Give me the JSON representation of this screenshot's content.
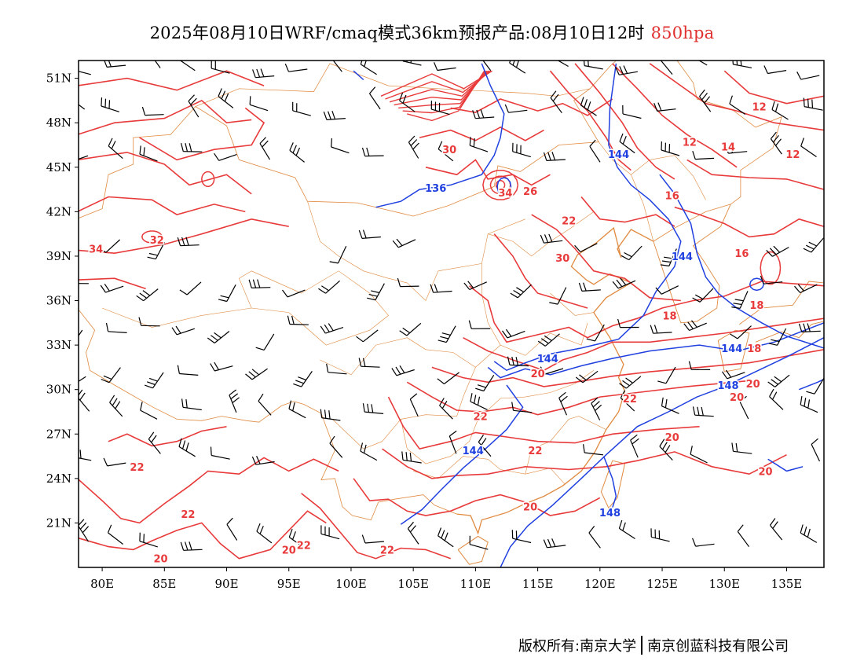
{
  "title": {
    "main": "2025年08月10日WRF/cmaq模式36km预报产品:08月10日12时",
    "level": "850hpa"
  },
  "axes": {
    "x_ticks": [
      "80E",
      "85E",
      "90E",
      "95E",
      "100E",
      "105E",
      "110E",
      "115E",
      "120E",
      "125E",
      "130E",
      "135E"
    ],
    "y_ticks": [
      "51N",
      "48N",
      "45N",
      "42N",
      "39N",
      "36N",
      "33N",
      "30N",
      "27N",
      "24N",
      "21N"
    ]
  },
  "colors": {
    "temperature": "#e83a3a",
    "height": "#2040e0",
    "border": "#e08a40",
    "wind": "#000000"
  },
  "temp_labels": [
    {
      "text": "12",
      "lon": 132.8,
      "lat": 49.1
    },
    {
      "text": "12",
      "lon": 127.2,
      "lat": 46.7
    },
    {
      "text": "14",
      "lon": 130.3,
      "lat": 46.4
    },
    {
      "text": "12",
      "lon": 135.5,
      "lat": 45.9
    },
    {
      "text": "30",
      "lon": 107.9,
      "lat": 46.2
    },
    {
      "text": "34",
      "lon": 112.4,
      "lat": 43.3
    },
    {
      "text": "26",
      "lon": 114.4,
      "lat": 43.4
    },
    {
      "text": "16",
      "lon": 125.8,
      "lat": 43.1
    },
    {
      "text": "22",
      "lon": 117.5,
      "lat": 41.4
    },
    {
      "text": "32",
      "lon": 84.4,
      "lat": 40.1
    },
    {
      "text": "34",
      "lon": 79.5,
      "lat": 39.5
    },
    {
      "text": "30",
      "lon": 117.0,
      "lat": 38.9
    },
    {
      "text": "16",
      "lon": 131.4,
      "lat": 39.2
    },
    {
      "text": "18",
      "lon": 132.6,
      "lat": 35.7
    },
    {
      "text": "18",
      "lon": 125.6,
      "lat": 35.0
    },
    {
      "text": "18",
      "lon": 132.4,
      "lat": 32.8
    },
    {
      "text": "20",
      "lon": 115.0,
      "lat": 31.1
    },
    {
      "text": "20",
      "lon": 132.3,
      "lat": 30.4
    },
    {
      "text": "20",
      "lon": 131.0,
      "lat": 29.5
    },
    {
      "text": "22",
      "lon": 122.4,
      "lat": 29.4
    },
    {
      "text": "22",
      "lon": 110.4,
      "lat": 28.2
    },
    {
      "text": "20",
      "lon": 125.8,
      "lat": 26.8
    },
    {
      "text": "22",
      "lon": 114.8,
      "lat": 25.9
    },
    {
      "text": "22",
      "lon": 82.8,
      "lat": 24.8
    },
    {
      "text": "20",
      "lon": 133.3,
      "lat": 24.5
    },
    {
      "text": "20",
      "lon": 114.4,
      "lat": 22.1
    },
    {
      "text": "22",
      "lon": 86.9,
      "lat": 21.6
    },
    {
      "text": "20",
      "lon": 95.0,
      "lat": 19.2
    },
    {
      "text": "22",
      "lon": 96.2,
      "lat": 19.5
    },
    {
      "text": "22",
      "lon": 102.9,
      "lat": 19.2
    },
    {
      "text": "20",
      "lon": 84.7,
      "lat": 18.6
    }
  ],
  "height_labels": [
    {
      "text": "144",
      "lon": 121.5,
      "lat": 45.9
    },
    {
      "text": "136",
      "lon": 106.8,
      "lat": 43.6
    },
    {
      "text": "144",
      "lon": 126.6,
      "lat": 39.0
    },
    {
      "text": "144",
      "lon": 115.8,
      "lat": 32.1
    },
    {
      "text": "144",
      "lon": 130.6,
      "lat": 32.8
    },
    {
      "text": "148",
      "lon": 130.3,
      "lat": 30.3
    },
    {
      "text": "144",
      "lon": 109.8,
      "lat": 25.9
    },
    {
      "text": "148",
      "lon": 120.8,
      "lat": 21.7
    }
  ],
  "credit": {
    "left": "版权所有:南京大学",
    "right": "南京创蓝科技有限公司"
  }
}
